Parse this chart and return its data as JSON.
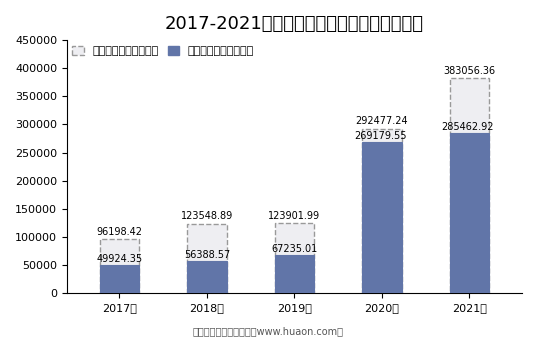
{
  "title": "2017-2021年瑞联新材总资产及净资产统计图",
  "years": [
    "2017年",
    "2018年",
    "2019年",
    "2020年",
    "2021年"
  ],
  "total_assets": [
    96198.42,
    123548.89,
    123901.99,
    292477.24,
    383056.36
  ],
  "net_assets": [
    49924.35,
    56388.57,
    67235.01,
    269179.55,
    285462.92
  ],
  "legend_total": "瑞联新材总资产：万元",
  "legend_net": "瑞联新材净资产：万元",
  "total_color": "#eeeef2",
  "total_edge_color": "#999999",
  "net_color": "#6175a8",
  "net_edge_color": "#6175a8",
  "ylabel_max": 450000,
  "yticks": [
    0,
    50000,
    100000,
    150000,
    200000,
    250000,
    300000,
    350000,
    400000,
    450000
  ],
  "footer": "制图：华经产业研究院（www.huaon.com）",
  "title_fontsize": 13,
  "label_fontsize": 7,
  "tick_fontsize": 8,
  "legend_fontsize": 8,
  "background_color": "#ffffff"
}
